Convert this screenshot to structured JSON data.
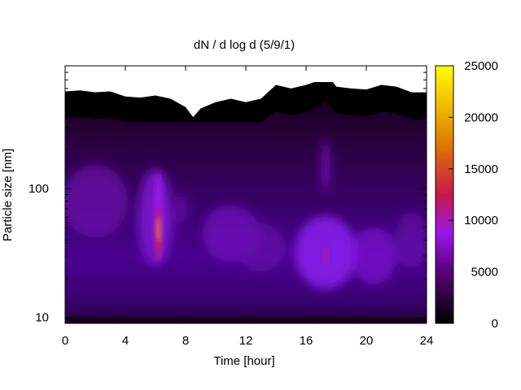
{
  "chart_data": {
    "type": "heatmap",
    "title": "dN / d log d (5/9/1)",
    "xlabel": "Time [hour]",
    "ylabel": "Particle size [nm]",
    "xlim": [
      0,
      24
    ],
    "xticks": [
      0,
      4,
      8,
      12,
      16,
      20,
      24
    ],
    "x_tick_labels": [
      "0",
      "4",
      "8",
      "12",
      "16",
      "20",
      "24"
    ],
    "ylim": [
      9,
      900
    ],
    "yscale": "log",
    "yticks": [
      10,
      100
    ],
    "y_tick_labels": [
      "10",
      "100"
    ],
    "colorbar": {
      "range": [
        0,
        25000
      ],
      "ticks": [
        0,
        5000,
        10000,
        15000,
        20000,
        25000
      ],
      "tick_labels": [
        "0",
        "5000",
        "10000",
        "15000",
        "20000",
        "25000"
      ],
      "colormap": [
        "#000000",
        "#5a0078",
        "#9a17e8",
        "#c41a4a",
        "#e07a00",
        "#ffff00"
      ]
    },
    "grid": false,
    "features": [
      {
        "description_hour": 6.2,
        "peak_size_nm": 45,
        "peak_value": 16000
      },
      {
        "description_hour": 17.3,
        "peak_size_nm": 30,
        "peak_value": 9000
      }
    ],
    "upper_data_limit_nm": [
      [
        0,
        570
      ],
      [
        1,
        580
      ],
      [
        2,
        560
      ],
      [
        3,
        570
      ],
      [
        4,
        520
      ],
      [
        5,
        510
      ],
      [
        6,
        530
      ],
      [
        7,
        500
      ],
      [
        8,
        430
      ],
      [
        8.5,
        360
      ],
      [
        9,
        420
      ],
      [
        10,
        470
      ],
      [
        11,
        500
      ],
      [
        12,
        470
      ],
      [
        13,
        500
      ],
      [
        14,
        640
      ],
      [
        15,
        600
      ],
      [
        16,
        640
      ],
      [
        17,
        700
      ],
      [
        17.3,
        800
      ],
      [
        18,
        620
      ],
      [
        19,
        600
      ],
      [
        20,
        590
      ],
      [
        21,
        640
      ],
      [
        22,
        620
      ],
      [
        23,
        560
      ],
      [
        24,
        560
      ]
    ]
  }
}
